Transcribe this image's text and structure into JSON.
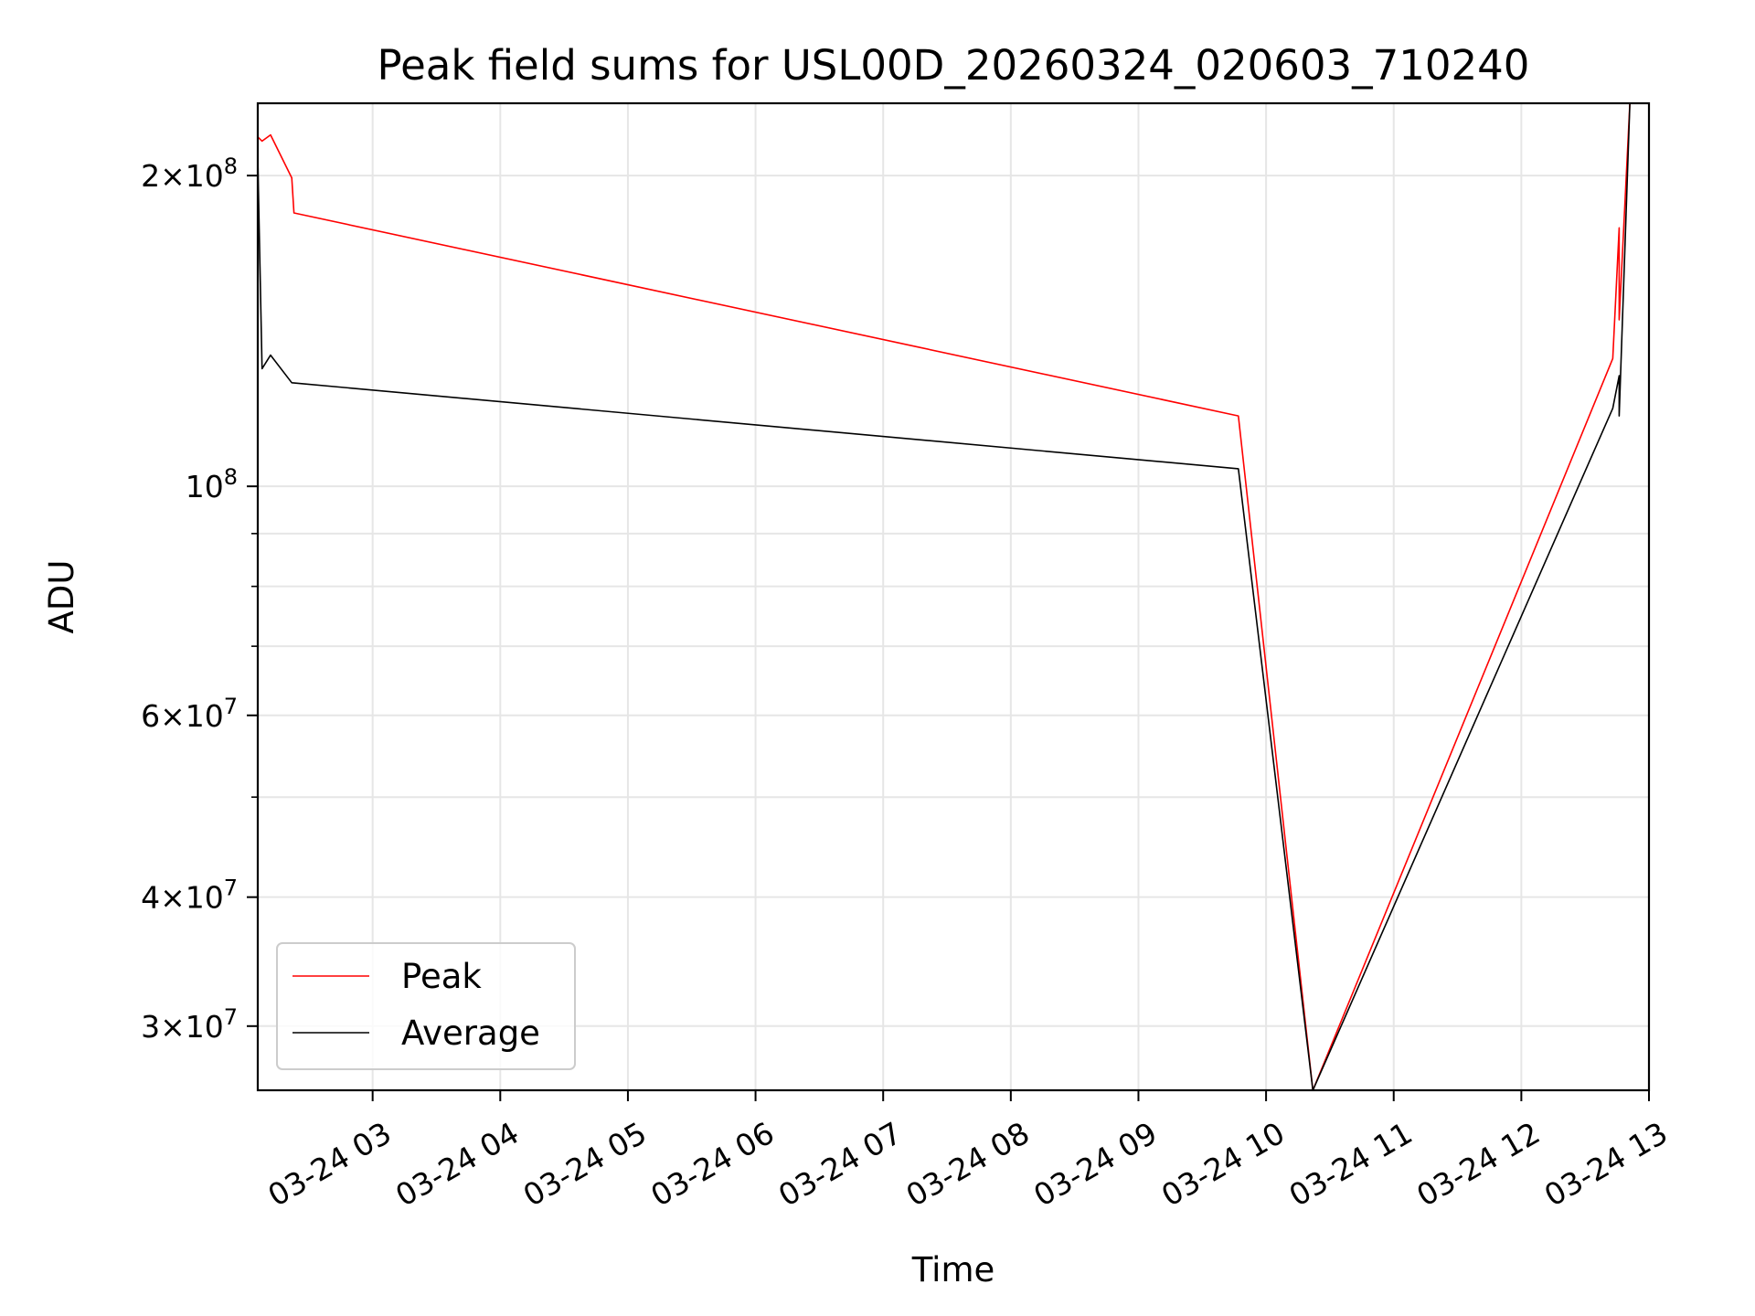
{
  "chart_data": {
    "type": "line",
    "title": "Peak field sums for USL00D_20260324_020603_710240",
    "xlabel": "Time",
    "ylabel": "ADU",
    "yscale": "log",
    "xlim": [
      "03-24 02:06",
      "03-24 13:00"
    ],
    "ylim": [
      26000000,
      235000000
    ],
    "grid": true,
    "legend_position": "lower-left",
    "x_ticks": [
      "03-24 03",
      "03-24 04",
      "03-24 05",
      "03-24 06",
      "03-24 07",
      "03-24 08",
      "03-24 09",
      "03-24 10",
      "03-24 11",
      "03-24 12",
      "03-24 13"
    ],
    "y_major_ticks": [
      {
        "value": 30000000,
        "mantissa": "3",
        "exp": "7"
      },
      {
        "value": 40000000,
        "mantissa": "4",
        "exp": "7"
      },
      {
        "value": 60000000,
        "mantissa": "6",
        "exp": "7"
      },
      {
        "value": 100000000,
        "mantissa": "",
        "exp": "8"
      },
      {
        "value": 200000000,
        "mantissa": "2",
        "exp": "8"
      }
    ],
    "y_minor_ticks": [
      50000000,
      70000000,
      80000000,
      90000000
    ],
    "series": [
      {
        "name": "Peak",
        "color": "#ff0000",
        "points": [
          [
            "03-24 02:06",
            218000000
          ],
          [
            "03-24 02:08",
            216000000
          ],
          [
            "03-24 02:12",
            219000000
          ],
          [
            "03-24 02:22",
            199000000
          ],
          [
            "03-24 02:23",
            184000000
          ],
          [
            "03-24 09:47",
            117000000
          ],
          [
            "03-24 10:22",
            26000000
          ],
          [
            "03-24 12:43",
            133000000
          ],
          [
            "03-24 12:46",
            178000000
          ],
          [
            "03-24 12:46",
            145000000
          ],
          [
            "03-24 12:51",
            235000000
          ]
        ]
      },
      {
        "name": "Average",
        "color": "#000000",
        "points": [
          [
            "03-24 02:06",
            208000000
          ],
          [
            "03-24 02:08",
            130000000
          ],
          [
            "03-24 02:12",
            134000000
          ],
          [
            "03-24 02:22",
            126000000
          ],
          [
            "03-24 09:47",
            104000000
          ],
          [
            "03-24 10:22",
            26000000
          ],
          [
            "03-24 12:43",
            119000000
          ],
          [
            "03-24 12:46",
            128000000
          ],
          [
            "03-24 12:46",
            117000000
          ],
          [
            "03-24 12:51",
            235000000
          ]
        ]
      }
    ]
  }
}
